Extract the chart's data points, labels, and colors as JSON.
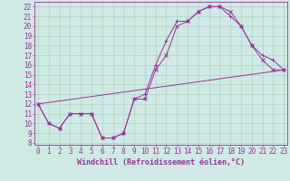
{
  "background_color": "#cfe9e5",
  "plot_bg_color": "#cfe9e5",
  "line_color": "#993399",
  "grid_color": "#aaccbb",
  "xlabel": "Windchill (Refroidissement éolien,°C)",
  "xlabel_fontsize": 6.0,
  "tick_fontsize": 5.5,
  "ylabel_values": [
    8,
    9,
    10,
    11,
    12,
    13,
    14,
    15,
    16,
    17,
    18,
    19,
    20,
    21,
    22
  ],
  "xlabel_values": [
    0,
    1,
    2,
    3,
    4,
    5,
    6,
    7,
    8,
    9,
    10,
    11,
    12,
    13,
    14,
    15,
    16,
    17,
    18,
    19,
    20,
    21,
    22,
    23
  ],
  "line1_x": [
    0,
    1,
    2,
    3,
    4,
    5,
    6,
    7,
    8,
    9,
    10,
    11,
    12,
    13,
    14,
    15,
    16,
    17,
    18,
    19,
    20,
    21,
    22,
    23
  ],
  "line1_y": [
    12,
    10,
    9.5,
    11,
    11,
    11,
    8.5,
    8.5,
    9,
    12.5,
    12.5,
    15.5,
    17,
    20,
    20.5,
    21.5,
    22,
    22,
    21.5,
    20,
    18,
    16.5,
    15.5,
    15.5
  ],
  "line2_x": [
    0,
    1,
    2,
    3,
    4,
    5,
    6,
    7,
    8,
    9,
    10,
    11,
    12,
    13,
    14,
    15,
    16,
    17,
    18,
    19,
    20,
    21,
    22,
    23
  ],
  "line2_y": [
    12,
    10,
    9.5,
    11,
    11,
    11,
    8.5,
    8.5,
    9,
    12.5,
    13,
    16,
    18.5,
    20.5,
    20.5,
    21.5,
    22,
    22,
    21,
    20,
    18,
    17,
    16.5,
    15.5
  ],
  "line3_x": [
    0,
    23
  ],
  "line3_y": [
    12,
    15.5
  ],
  "xlim": [
    -0.3,
    23.3
  ],
  "ylim": [
    7.8,
    22.5
  ],
  "marker_size": 2.5,
  "linewidth": 0.7
}
